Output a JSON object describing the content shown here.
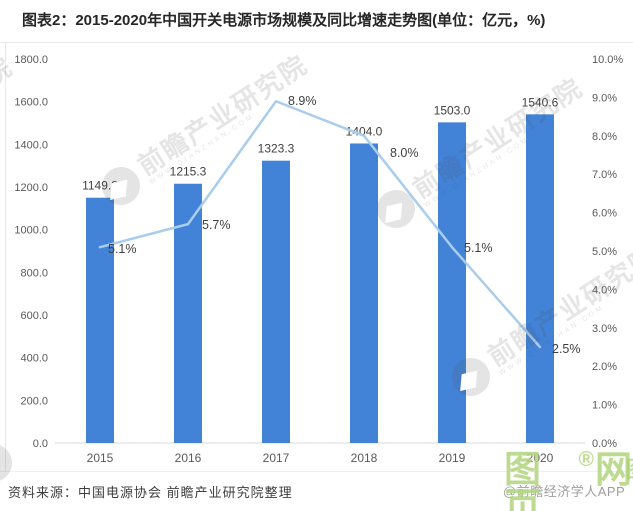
{
  "header": {
    "title": "图表2：2015-2020年中国开关电源市场规模及同比增速走势图(单位：亿元，%)"
  },
  "chart_data": {
    "type": "bar+line",
    "title": "2015-2020年中国开关电源市场规模及同比增速走势图",
    "units": "亿元，%",
    "categories": [
      "2015",
      "2016",
      "2017",
      "2018",
      "2019",
      "2020"
    ],
    "series": [
      {
        "name": "市场规模",
        "type": "bar",
        "values": [
          1149.8,
          1215.3,
          1323.3,
          1404.0,
          1503.0,
          1540.6
        ],
        "labels": [
          "1149.8",
          "1215.3",
          "1323.3",
          "1404.0",
          "1503.0",
          "1540.6"
        ],
        "color": "#4282D7"
      },
      {
        "name": "同比增速",
        "type": "line",
        "values": [
          5.1,
          5.7,
          8.9,
          8.0,
          5.1,
          2.5
        ],
        "labels": [
          "5.1%",
          "5.7%",
          "8.9%",
          "8.0%",
          "5.1%",
          "2.5%"
        ],
        "color": "#A9CDEB"
      }
    ],
    "left_axis": {
      "min": 0,
      "max": 1800,
      "step": 200,
      "ticks": [
        "1800.0",
        "1600.0",
        "1400.0",
        "1200.0",
        "1000.0",
        "800.0",
        "600.0",
        "400.0",
        "200.0",
        "0.0"
      ]
    },
    "right_axis": {
      "min": 0,
      "max": 10,
      "step": 1,
      "ticks": [
        "10.0%",
        "9.0%",
        "8.0%",
        "7.0%",
        "6.0%",
        "5.0%",
        "4.0%",
        "3.0%",
        "2.0%",
        "1.0%",
        "0.0%"
      ]
    },
    "grid": false,
    "legend": "none",
    "label_color": "#3f3f3f",
    "tick_color": "#595959",
    "axis_line_color": "#d9d9d9"
  },
  "watermark": {
    "main": "前瞻产业研究院",
    "sub": "WWW.QIANZHAN.COM"
  },
  "footer": {
    "source": "资料来源：中国电源协会 前瞻产业研究院整理",
    "app_credit": "@前瞻经济学人APP",
    "stamp": {
      "part1": "图页",
      "reg": "®",
      "part2": "网",
      "fragment": "图"
    }
  }
}
